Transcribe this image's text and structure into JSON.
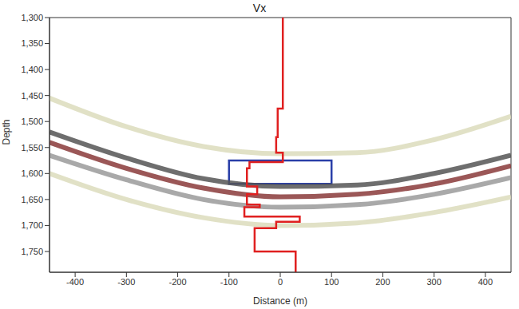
{
  "chart_data": {
    "type": "line",
    "title": "Vx",
    "x_label": "Distance (m)",
    "y_label": "Depth",
    "xlim": [
      -450,
      450
    ],
    "xticks": [
      -400,
      -300,
      -200,
      -100,
      0,
      100,
      200,
      300,
      400
    ],
    "ylim": [
      1300,
      1790
    ],
    "yticks": [
      {
        "value": 1300,
        "label": "1,300"
      },
      {
        "value": 1350,
        "label": "1,350"
      },
      {
        "value": 1400,
        "label": "1,400"
      },
      {
        "value": 1450,
        "label": "1,450"
      },
      {
        "value": 1500,
        "label": "1,500"
      },
      {
        "value": 1550,
        "label": "1,550"
      },
      {
        "value": 1600,
        "label": "1,600"
      },
      {
        "value": 1650,
        "label": "1,650"
      },
      {
        "value": 1700,
        "label": "1,700"
      },
      {
        "value": 1750,
        "label": "1,750"
      }
    ],
    "grid": false,
    "series": [
      {
        "color": "#dcdcbc",
        "line_style": "smooth",
        "x": [
          -450,
          -300,
          -150,
          0,
          150,
          300,
          450
        ],
        "values": [
          1455,
          1510,
          1548,
          1562,
          1560,
          1535,
          1490
        ]
      },
      {
        "color": "#555555",
        "line_style": "smooth",
        "x": [
          -450,
          -300,
          -150,
          0,
          150,
          300,
          450
        ],
        "values": [
          1520,
          1570,
          1610,
          1625,
          1622,
          1600,
          1565
        ]
      },
      {
        "color": "#8a3a3a",
        "line_style": "smooth",
        "x": [
          -450,
          -300,
          -150,
          0,
          150,
          300,
          450
        ],
        "values": [
          1540,
          1590,
          1628,
          1645,
          1640,
          1620,
          1585
        ]
      },
      {
        "color": "#9a9a9a",
        "line_style": "smooth",
        "x": [
          -450,
          -300,
          -150,
          0,
          150,
          300,
          450
        ],
        "values": [
          1565,
          1612,
          1650,
          1665,
          1660,
          1640,
          1608
        ]
      },
      {
        "color": "#dcdcbc",
        "line_style": "smooth",
        "x": [
          -450,
          -300,
          -150,
          0,
          150,
          300,
          450
        ],
        "values": [
          1600,
          1650,
          1685,
          1700,
          1695,
          1675,
          1645
        ]
      },
      {
        "color": "#e02020",
        "line_style": "step",
        "x": [
          5,
          -5,
          -8,
          5,
          -60,
          -65,
          -45,
          -65,
          -40,
          -70,
          38,
          -8,
          -50,
          30,
          30
        ],
        "values": [
          1300,
          1475,
          1530,
          1560,
          1578,
          1590,
          1625,
          1640,
          1660,
          1665,
          1683,
          1693,
          1705,
          1750,
          1790
        ]
      }
    ],
    "box": {
      "x": [
        -100,
        100
      ],
      "y": [
        1575,
        1620
      ],
      "color": "#2a3fa8"
    }
  }
}
